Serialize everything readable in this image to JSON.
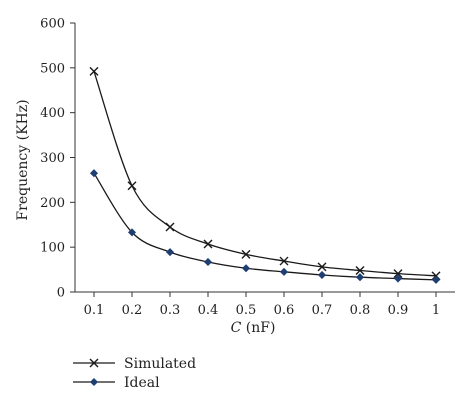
{
  "chart_data": {
    "type": "line",
    "title": "",
    "xlabel": "C (nF)",
    "xlabel_var": "C",
    "xlabel_unit": " (nF)",
    "ylabel": "Frequency (KHz)",
    "x": [
      0.1,
      0.2,
      0.3,
      0.4,
      0.5,
      0.6,
      0.7,
      0.8,
      0.9,
      1
    ],
    "x_tick_labels": [
      "0.1",
      "0.2",
      "0.3",
      "0.4",
      "0.5",
      "0.6",
      "0.7",
      "0.8",
      "0.9",
      "1"
    ],
    "xlim": [
      0.05,
      1.05
    ],
    "ylim": [
      0,
      600
    ],
    "y_ticks": [
      0,
      100,
      200,
      300,
      400,
      500,
      600
    ],
    "y_tick_labels": [
      "0",
      "100",
      "200",
      "300",
      "400",
      "500",
      "600"
    ],
    "grid": false,
    "legend_position": "bottom-left",
    "series": [
      {
        "name": "Simulated",
        "marker": "x",
        "color": "#1a1a1a",
        "values": [
          492,
          237,
          145,
          107,
          84,
          69,
          56,
          48,
          41,
          36
        ]
      },
      {
        "name": "Ideal",
        "marker": "diamond",
        "color": "#1f3f73",
        "values": [
          265,
          133,
          89,
          67,
          53,
          45,
          38,
          33,
          30,
          27
        ]
      }
    ]
  }
}
